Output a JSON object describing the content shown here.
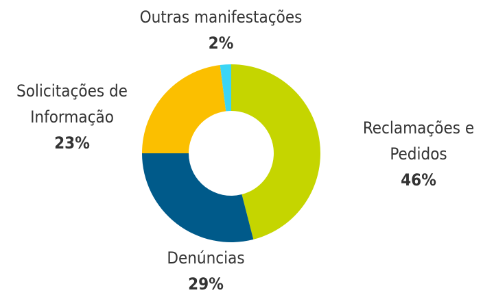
{
  "chart_data": {
    "type": "donut",
    "categories": [
      "Reclamações e Pedidos",
      "Denúncias",
      "Solicitações de Informação",
      "Outras manifestações"
    ],
    "values": [
      46,
      29,
      23,
      2
    ],
    "value_labels": [
      "46%",
      "29%",
      "23%",
      "2%"
    ],
    "colors": [
      "#c5d500",
      "#005a8a",
      "#fbbf00",
      "#3bd5f5"
    ]
  }
}
